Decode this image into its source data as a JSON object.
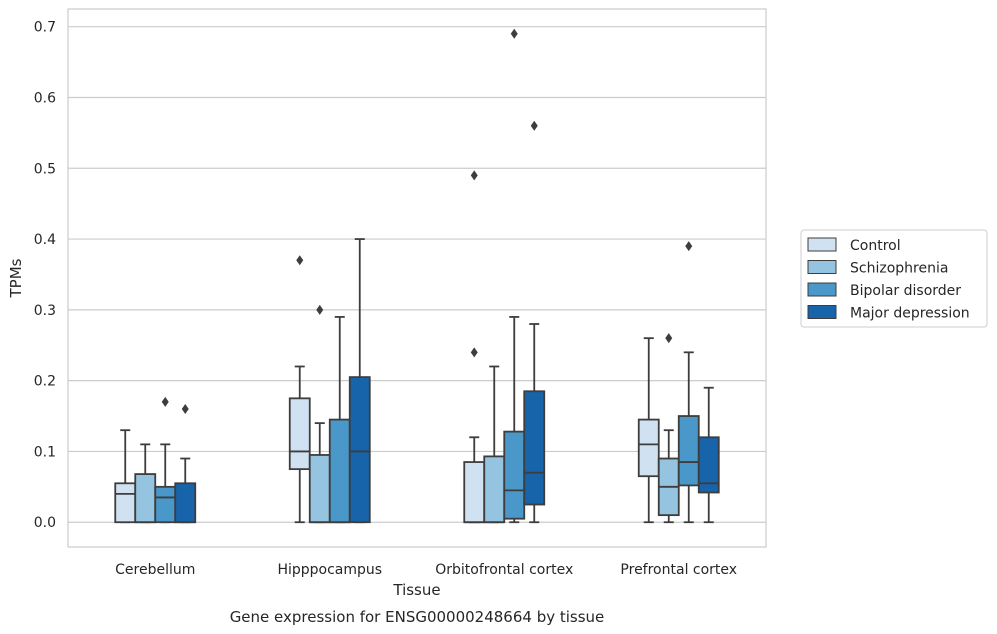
{
  "chart_data": {
    "type": "box",
    "xlabel": "Tissue",
    "ylabel": "TPMs",
    "caption": "Gene expression for ENSG00000248664 by tissue",
    "ylim": [
      -0.035,
      0.725
    ],
    "yticks": [
      0.0,
      0.1,
      0.2,
      0.3,
      0.4,
      0.5,
      0.6,
      0.7
    ],
    "ytick_labels": [
      "0.0",
      "0.1",
      "0.2",
      "0.3",
      "0.4",
      "0.5",
      "0.6",
      "0.7"
    ],
    "grid": true,
    "legend_position": "right",
    "categories": [
      "Cerebellum",
      "Hipppocampus",
      "Orbitofrontal cortex",
      "Prefrontal cortex"
    ],
    "series": [
      {
        "name": "Control",
        "color": "#d0e1f2",
        "boxes": [
          {
            "whislo": 0.0,
            "q1": 0.0,
            "med": 0.04,
            "q3": 0.055,
            "whishi": 0.13,
            "fliers": []
          },
          {
            "whislo": 0.0,
            "q1": 0.075,
            "med": 0.1,
            "q3": 0.175,
            "whishi": 0.22,
            "fliers": [
              0.37
            ]
          },
          {
            "whislo": 0.0,
            "q1": 0.0,
            "med": 0.0,
            "q3": 0.085,
            "whishi": 0.12,
            "fliers": [
              0.24,
              0.49
            ]
          },
          {
            "whislo": 0.0,
            "q1": 0.065,
            "med": 0.11,
            "q3": 0.145,
            "whishi": 0.26,
            "fliers": []
          }
        ]
      },
      {
        "name": "Schizophrenia",
        "color": "#94c4df",
        "boxes": [
          {
            "whislo": 0.0,
            "q1": 0.0,
            "med": 0.0,
            "q3": 0.068,
            "whishi": 0.11,
            "fliers": []
          },
          {
            "whislo": 0.0,
            "q1": 0.0,
            "med": 0.0,
            "q3": 0.095,
            "whishi": 0.14,
            "fliers": [
              0.3
            ]
          },
          {
            "whislo": 0.0,
            "q1": 0.0,
            "med": 0.0,
            "q3": 0.093,
            "whishi": 0.22,
            "fliers": []
          },
          {
            "whislo": 0.0,
            "q1": 0.01,
            "med": 0.05,
            "q3": 0.09,
            "whishi": 0.13,
            "fliers": [
              0.26
            ]
          }
        ]
      },
      {
        "name": "Bipolar disorder",
        "color": "#4a98c9",
        "boxes": [
          {
            "whislo": 0.0,
            "q1": 0.0,
            "med": 0.035,
            "q3": 0.05,
            "whishi": 0.11,
            "fliers": [
              0.17
            ]
          },
          {
            "whislo": 0.0,
            "q1": 0.0,
            "med": 0.0,
            "q3": 0.145,
            "whishi": 0.29,
            "fliers": []
          },
          {
            "whislo": 0.0,
            "q1": 0.005,
            "med": 0.045,
            "q3": 0.128,
            "whishi": 0.29,
            "fliers": [
              0.69
            ]
          },
          {
            "whislo": 0.0,
            "q1": 0.052,
            "med": 0.085,
            "q3": 0.15,
            "whishi": 0.24,
            "fliers": [
              0.39
            ]
          }
        ]
      },
      {
        "name": "Major depression",
        "color": "#1764ab",
        "boxes": [
          {
            "whislo": 0.0,
            "q1": 0.0,
            "med": 0.0,
            "q3": 0.055,
            "whishi": 0.09,
            "fliers": [
              0.16
            ]
          },
          {
            "whislo": 0.0,
            "q1": 0.0,
            "med": 0.1,
            "q3": 0.205,
            "whishi": 0.4,
            "fliers": []
          },
          {
            "whislo": 0.0,
            "q1": 0.025,
            "med": 0.07,
            "q3": 0.185,
            "whishi": 0.28,
            "fliers": [
              0.56
            ]
          },
          {
            "whislo": 0.0,
            "q1": 0.042,
            "med": 0.055,
            "q3": 0.12,
            "whishi": 0.19,
            "fliers": []
          }
        ]
      }
    ]
  }
}
